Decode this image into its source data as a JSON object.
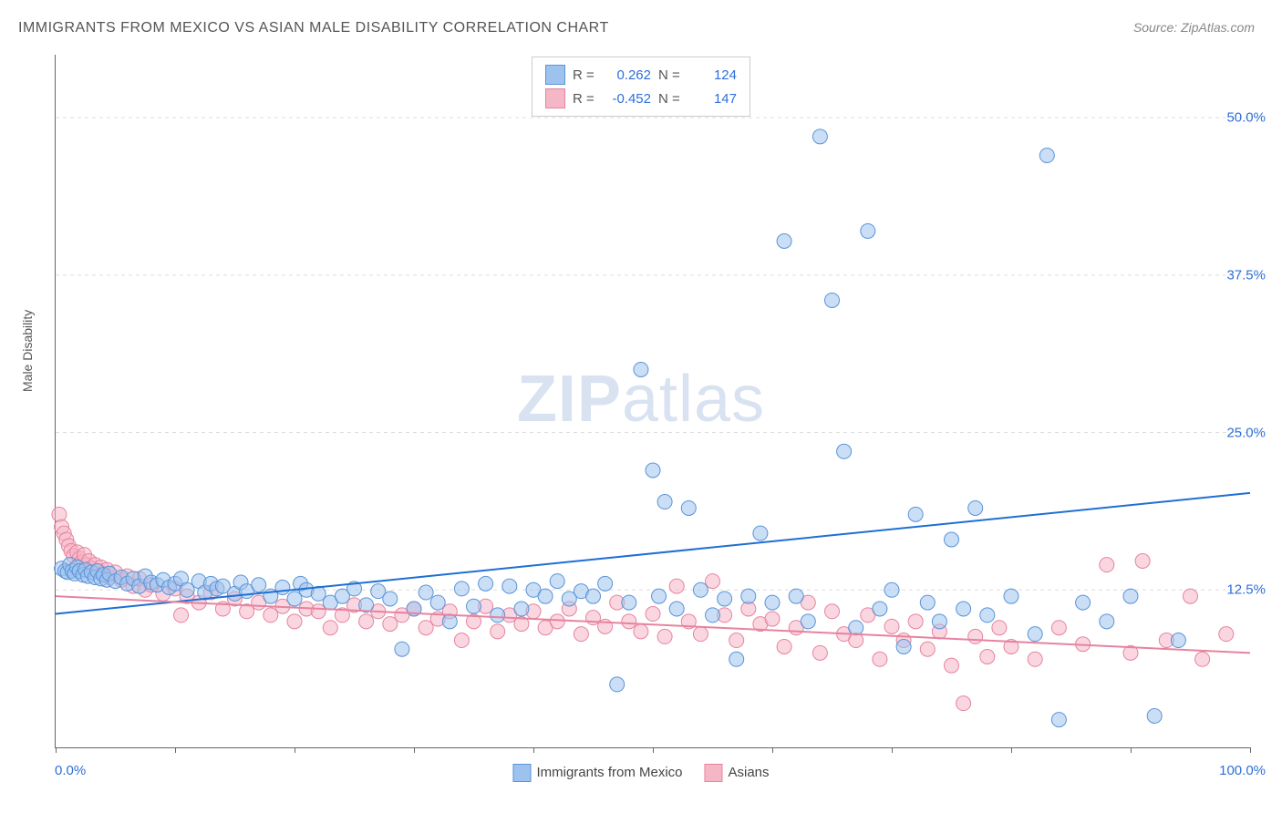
{
  "title": "IMMIGRANTS FROM MEXICO VS ASIAN MALE DISABILITY CORRELATION CHART",
  "source_label": "Source: ZipAtlas.com",
  "watermark_zip": "ZIP",
  "watermark_rest": "atlas",
  "y_axis_label": "Male Disability",
  "chart": {
    "type": "scatter",
    "xlim": [
      0,
      100
    ],
    "ylim": [
      0,
      55
    ],
    "y_ticks": [
      12.5,
      25.0,
      37.5,
      50.0
    ],
    "y_tick_labels": [
      "12.5%",
      "25.0%",
      "37.5%",
      "50.0%"
    ],
    "x_tick_positions": [
      0,
      10,
      20,
      30,
      40,
      50,
      60,
      70,
      80,
      90,
      100
    ],
    "x_min_label": "0.0%",
    "x_max_label": "100.0%",
    "background_color": "#ffffff",
    "grid_color": "#dddddd",
    "marker_radius": 8,
    "marker_opacity": 0.55,
    "line_width": 2,
    "series": [
      {
        "name": "Immigrants from Mexico",
        "color_fill": "#9ec2ee",
        "color_stroke": "#5a94d8",
        "line_color": "#1f6fd4",
        "R": "0.262",
        "N": "124",
        "trend": {
          "x1": 0,
          "y1": 10.6,
          "x2": 100,
          "y2": 20.2
        },
        "points": [
          [
            0.5,
            14.2
          ],
          [
            0.8,
            14.0
          ],
          [
            1.0,
            13.9
          ],
          [
            1.2,
            14.5
          ],
          [
            1.4,
            14.0
          ],
          [
            1.6,
            13.8
          ],
          [
            1.8,
            14.3
          ],
          [
            2.0,
            14.0
          ],
          [
            2.3,
            13.7
          ],
          [
            2.5,
            14.1
          ],
          [
            2.7,
            13.6
          ],
          [
            3.0,
            13.9
          ],
          [
            3.3,
            13.5
          ],
          [
            3.5,
            14.0
          ],
          [
            3.8,
            13.4
          ],
          [
            4.0,
            13.7
          ],
          [
            4.3,
            13.3
          ],
          [
            4.5,
            13.8
          ],
          [
            5.0,
            13.2
          ],
          [
            5.5,
            13.5
          ],
          [
            6.0,
            13.0
          ],
          [
            6.5,
            13.4
          ],
          [
            7.0,
            12.8
          ],
          [
            7.5,
            13.6
          ],
          [
            8.0,
            13.1
          ],
          [
            8.5,
            12.9
          ],
          [
            9.0,
            13.3
          ],
          [
            9.5,
            12.7
          ],
          [
            10.0,
            13.0
          ],
          [
            10.5,
            13.4
          ],
          [
            11.0,
            12.5
          ],
          [
            12.0,
            13.2
          ],
          [
            12.5,
            12.3
          ],
          [
            13.0,
            13.0
          ],
          [
            13.5,
            12.6
          ],
          [
            14.0,
            12.8
          ],
          [
            15.0,
            12.2
          ],
          [
            15.5,
            13.1
          ],
          [
            16.0,
            12.4
          ],
          [
            17.0,
            12.9
          ],
          [
            18.0,
            12.0
          ],
          [
            19.0,
            12.7
          ],
          [
            20.0,
            11.8
          ],
          [
            20.5,
            13.0
          ],
          [
            21.0,
            12.5
          ],
          [
            22.0,
            12.2
          ],
          [
            23.0,
            11.5
          ],
          [
            24.0,
            12.0
          ],
          [
            25.0,
            12.6
          ],
          [
            26.0,
            11.3
          ],
          [
            27.0,
            12.4
          ],
          [
            28.0,
            11.8
          ],
          [
            29.0,
            7.8
          ],
          [
            30.0,
            11.0
          ],
          [
            31.0,
            12.3
          ],
          [
            32.0,
            11.5
          ],
          [
            33.0,
            10.0
          ],
          [
            34.0,
            12.6
          ],
          [
            35.0,
            11.2
          ],
          [
            36.0,
            13.0
          ],
          [
            37.0,
            10.5
          ],
          [
            38.0,
            12.8
          ],
          [
            39.0,
            11.0
          ],
          [
            40.0,
            12.5
          ],
          [
            41.0,
            12.0
          ],
          [
            42.0,
            13.2
          ],
          [
            43.0,
            11.8
          ],
          [
            44.0,
            12.4
          ],
          [
            45.0,
            12.0
          ],
          [
            46.0,
            13.0
          ],
          [
            47.0,
            5.0
          ],
          [
            48.0,
            11.5
          ],
          [
            49.0,
            30.0
          ],
          [
            50.0,
            22.0
          ],
          [
            50.5,
            12.0
          ],
          [
            51.0,
            19.5
          ],
          [
            52.0,
            11.0
          ],
          [
            53.0,
            19.0
          ],
          [
            54.0,
            12.5
          ],
          [
            55.0,
            10.5
          ],
          [
            56.0,
            11.8
          ],
          [
            57.0,
            7.0
          ],
          [
            58.0,
            12.0
          ],
          [
            59.0,
            17.0
          ],
          [
            60.0,
            11.5
          ],
          [
            61.0,
            40.2
          ],
          [
            62.0,
            12.0
          ],
          [
            63.0,
            10.0
          ],
          [
            64.0,
            48.5
          ],
          [
            65.0,
            35.5
          ],
          [
            66.0,
            23.5
          ],
          [
            67.0,
            9.5
          ],
          [
            68.0,
            41.0
          ],
          [
            69.0,
            11.0
          ],
          [
            70.0,
            12.5
          ],
          [
            71.0,
            8.0
          ],
          [
            72.0,
            18.5
          ],
          [
            73.0,
            11.5
          ],
          [
            74.0,
            10.0
          ],
          [
            75.0,
            16.5
          ],
          [
            76.0,
            11.0
          ],
          [
            77.0,
            19.0
          ],
          [
            78.0,
            10.5
          ],
          [
            80.0,
            12.0
          ],
          [
            82.0,
            9.0
          ],
          [
            83.0,
            47.0
          ],
          [
            84.0,
            2.2
          ],
          [
            86.0,
            11.5
          ],
          [
            88.0,
            10.0
          ],
          [
            90.0,
            12.0
          ],
          [
            92.0,
            2.5
          ],
          [
            94.0,
            8.5
          ]
        ]
      },
      {
        "name": "Asians",
        "color_fill": "#f5b7c6",
        "color_stroke": "#e6839f",
        "line_color": "#e6839f",
        "R": "-0.452",
        "N": "147",
        "trend": {
          "x1": 0,
          "y1": 12.0,
          "x2": 100,
          "y2": 7.5
        },
        "points": [
          [
            0.3,
            18.5
          ],
          [
            0.5,
            17.5
          ],
          [
            0.7,
            17.0
          ],
          [
            0.9,
            16.5
          ],
          [
            1.1,
            16.0
          ],
          [
            1.3,
            15.6
          ],
          [
            1.5,
            15.2
          ],
          [
            1.8,
            15.5
          ],
          [
            2.0,
            15.0
          ],
          [
            2.2,
            14.7
          ],
          [
            2.4,
            15.3
          ],
          [
            2.6,
            14.5
          ],
          [
            2.8,
            14.8
          ],
          [
            3.0,
            14.2
          ],
          [
            3.3,
            14.5
          ],
          [
            3.5,
            14.0
          ],
          [
            3.8,
            14.3
          ],
          [
            4.0,
            13.8
          ],
          [
            4.3,
            14.1
          ],
          [
            4.5,
            13.5
          ],
          [
            5.0,
            13.9
          ],
          [
            5.5,
            13.3
          ],
          [
            6.0,
            13.6
          ],
          [
            6.5,
            12.8
          ],
          [
            7.0,
            13.4
          ],
          [
            7.5,
            12.5
          ],
          [
            8.0,
            12.9
          ],
          [
            9.0,
            12.2
          ],
          [
            10.0,
            12.6
          ],
          [
            10.5,
            10.5
          ],
          [
            11.0,
            12.0
          ],
          [
            12.0,
            11.5
          ],
          [
            13.0,
            12.3
          ],
          [
            14.0,
            11.0
          ],
          [
            15.0,
            11.8
          ],
          [
            16.0,
            10.8
          ],
          [
            17.0,
            11.5
          ],
          [
            18.0,
            10.5
          ],
          [
            19.0,
            11.2
          ],
          [
            20.0,
            10.0
          ],
          [
            21.0,
            11.0
          ],
          [
            22.0,
            10.8
          ],
          [
            23.0,
            9.5
          ],
          [
            24.0,
            10.5
          ],
          [
            25.0,
            11.3
          ],
          [
            26.0,
            10.0
          ],
          [
            27.0,
            10.8
          ],
          [
            28.0,
            9.8
          ],
          [
            29.0,
            10.5
          ],
          [
            30.0,
            11.0
          ],
          [
            31.0,
            9.5
          ],
          [
            32.0,
            10.2
          ],
          [
            33.0,
            10.8
          ],
          [
            34.0,
            8.5
          ],
          [
            35.0,
            10.0
          ],
          [
            36.0,
            11.2
          ],
          [
            37.0,
            9.2
          ],
          [
            38.0,
            10.5
          ],
          [
            39.0,
            9.8
          ],
          [
            40.0,
            10.8
          ],
          [
            41.0,
            9.5
          ],
          [
            42.0,
            10.0
          ],
          [
            43.0,
            11.0
          ],
          [
            44.0,
            9.0
          ],
          [
            45.0,
            10.3
          ],
          [
            46.0,
            9.6
          ],
          [
            47.0,
            11.5
          ],
          [
            48.0,
            10.0
          ],
          [
            49.0,
            9.2
          ],
          [
            50.0,
            10.6
          ],
          [
            51.0,
            8.8
          ],
          [
            52.0,
            12.8
          ],
          [
            53.0,
            10.0
          ],
          [
            54.0,
            9.0
          ],
          [
            55.0,
            13.2
          ],
          [
            56.0,
            10.5
          ],
          [
            57.0,
            8.5
          ],
          [
            58.0,
            11.0
          ],
          [
            59.0,
            9.8
          ],
          [
            60.0,
            10.2
          ],
          [
            61.0,
            8.0
          ],
          [
            62.0,
            9.5
          ],
          [
            63.0,
            11.5
          ],
          [
            64.0,
            7.5
          ],
          [
            65.0,
            10.8
          ],
          [
            66.0,
            9.0
          ],
          [
            67.0,
            8.5
          ],
          [
            68.0,
            10.5
          ],
          [
            69.0,
            7.0
          ],
          [
            70.0,
            9.6
          ],
          [
            71.0,
            8.5
          ],
          [
            72.0,
            10.0
          ],
          [
            73.0,
            7.8
          ],
          [
            74.0,
            9.2
          ],
          [
            75.0,
            6.5
          ],
          [
            76.0,
            3.5
          ],
          [
            77.0,
            8.8
          ],
          [
            78.0,
            7.2
          ],
          [
            79.0,
            9.5
          ],
          [
            80.0,
            8.0
          ],
          [
            82.0,
            7.0
          ],
          [
            84.0,
            9.5
          ],
          [
            86.0,
            8.2
          ],
          [
            88.0,
            14.5
          ],
          [
            90.0,
            7.5
          ],
          [
            91.0,
            14.8
          ],
          [
            93.0,
            8.5
          ],
          [
            95.0,
            12.0
          ],
          [
            96.0,
            7.0
          ],
          [
            98.0,
            9.0
          ]
        ]
      }
    ]
  },
  "bottom_legend": {
    "items": [
      {
        "label": "Immigrants from Mexico",
        "fill": "#9ec2ee",
        "stroke": "#5a94d8"
      },
      {
        "label": "Asians",
        "fill": "#f5b7c6",
        "stroke": "#e6839f"
      }
    ]
  },
  "stats_label_R": "R =",
  "stats_label_N": "N ="
}
